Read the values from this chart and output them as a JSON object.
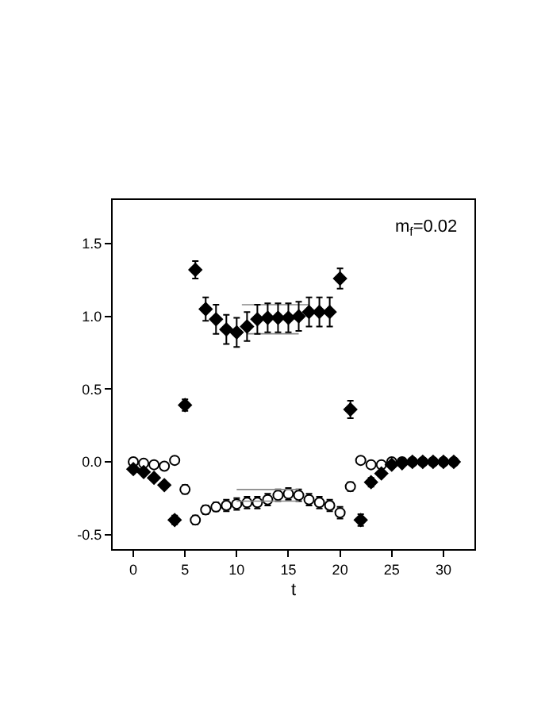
{
  "chart_data": {
    "type": "scatter",
    "xlabel": "t",
    "annotations": [
      "m$_{f}$=0.02"
    ],
    "x": [
      0,
      1,
      2,
      3,
      4,
      5,
      6,
      7,
      8,
      9,
      10,
      11,
      12,
      13,
      14,
      15,
      16,
      17,
      18,
      19,
      20,
      21,
      22,
      23,
      24,
      25,
      26,
      27,
      28,
      29,
      30,
      31
    ],
    "series": [
      {
        "color": "#000000",
        "marker": "diamond",
        "values": [
          -0.05,
          -0.07,
          -0.11,
          -0.16,
          -0.4,
          0.39,
          1.32,
          1.05,
          0.98,
          0.91,
          0.89,
          0.93,
          0.98,
          0.99,
          0.99,
          0.99,
          1.0,
          1.03,
          1.03,
          1.03,
          1.26,
          0.36,
          -0.4,
          -0.14,
          -0.08,
          -0.02,
          -0.01,
          0.0,
          0.0,
          0.0,
          0.0,
          0.0
        ],
        "errors": [
          null,
          null,
          null,
          null,
          0.03,
          0.04,
          0.06,
          0.08,
          0.1,
          0.1,
          0.1,
          0.1,
          0.1,
          0.1,
          0.1,
          0.1,
          0.1,
          0.1,
          0.1,
          0.1,
          0.07,
          0.06,
          0.04,
          0.03,
          null,
          null,
          null,
          null,
          null,
          null,
          null,
          null
        ]
      },
      {
        "color": "#000000",
        "marker": "circle",
        "values": [
          0.0,
          -0.01,
          -0.02,
          -0.03,
          0.01,
          -0.19,
          -0.4,
          -0.33,
          -0.31,
          -0.3,
          -0.29,
          -0.28,
          -0.28,
          -0.26,
          -0.23,
          -0.22,
          -0.23,
          -0.26,
          -0.28,
          -0.3,
          -0.35,
          -0.17,
          0.01,
          -0.02,
          -0.02,
          0.0,
          0.0,
          0.0,
          0.0,
          0.0,
          0.0,
          0.0
        ],
        "errors": [
          null,
          null,
          null,
          null,
          null,
          0.03,
          0.03,
          0.03,
          0.03,
          0.04,
          0.04,
          0.04,
          0.04,
          0.04,
          0.04,
          0.04,
          0.04,
          0.04,
          0.04,
          0.04,
          0.04,
          0.03,
          null,
          null,
          null,
          null,
          null,
          null,
          null,
          null,
          null,
          null
        ]
      },
      {
        "type": "line",
        "color": "#888888",
        "x": [
          10.5,
          17
        ],
        "values": [
          1.08,
          1.08
        ]
      },
      {
        "type": "line",
        "color": "#888888",
        "x": [
          11,
          16
        ],
        "values": [
          0.88,
          0.88
        ]
      },
      {
        "type": "line",
        "color": "#888888",
        "x": [
          10,
          16
        ],
        "values": [
          -0.19,
          -0.19
        ]
      },
      {
        "type": "line",
        "color": "#888888",
        "x": [
          10,
          16
        ],
        "values": [
          -0.27,
          -0.27
        ]
      }
    ],
    "xlim": [
      -2,
      33
    ],
    "xticks": [
      0,
      5,
      10,
      15,
      20,
      25,
      30
    ],
    "ylim": [
      -0.6,
      1.8
    ],
    "yticks": [
      {
        "value": -0.5,
        "label": "-0.5"
      },
      {
        "value": 0,
        "label": "0.0"
      },
      {
        "value": 0.5,
        "label": "0.5"
      },
      {
        "value": 1.0,
        "label": "1.0"
      },
      {
        "value": 1.5,
        "label": "1.5"
      }
    ],
    "grid": false
  }
}
